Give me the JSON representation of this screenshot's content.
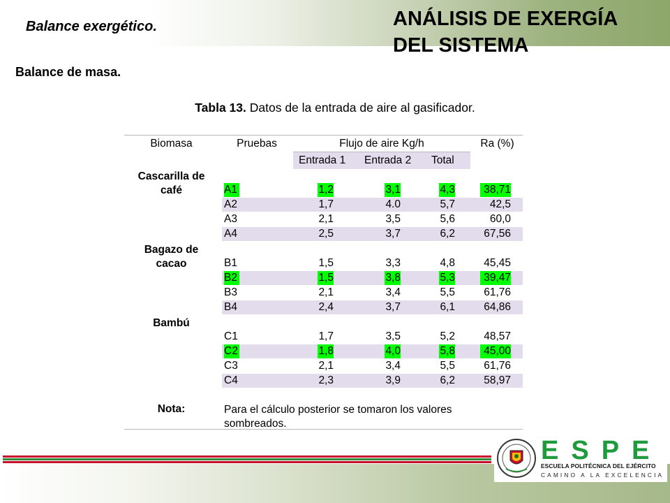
{
  "header": {
    "subtitle": "Balance exergético.",
    "title_line1": "ANÁLISIS DE EXERGÍA",
    "title_line2": "DEL SISTEMA"
  },
  "section_label": "Balance de masa.",
  "caption": {
    "label": "Tabla 13.",
    "text": " Datos de la entrada de aire al gasificador."
  },
  "table": {
    "headers": {
      "biomasa": "Biomasa",
      "pruebas": "Pruebas",
      "flujo": "Flujo de aire Kg/h",
      "ra": "Ra (%)",
      "entrada1": "Entrada 1",
      "entrada2": "Entrada 2",
      "total": "Total"
    },
    "groups": [
      {
        "name_line1": "Cascarilla de",
        "name_line2": "café"
      },
      {
        "name_line1": "Bagazo de",
        "name_line2": "cacao"
      },
      {
        "name_line1": "Bambú",
        "name_line2": ""
      }
    ],
    "rows": [
      {
        "prueba": "A1",
        "e1": "1,2",
        "e2": "3,1",
        "total": "4,3",
        "ra": "38,71",
        "highlighted": true
      },
      {
        "prueba": "A2",
        "e1": "1,7",
        "e2": "4.0",
        "total": "5,7",
        "ra": "42,5",
        "highlighted": false
      },
      {
        "prueba": "A3",
        "e1": "2,1",
        "e2": "3,5",
        "total": "5,6",
        "ra": "60,0",
        "highlighted": false
      },
      {
        "prueba": "A4",
        "e1": "2,5",
        "e2": "3,7",
        "total": "6,2",
        "ra": "67,56",
        "highlighted": false
      },
      {
        "prueba": "B1",
        "e1": "1,5",
        "e2": "3,3",
        "total": "4,8",
        "ra": "45,45",
        "highlighted": false
      },
      {
        "prueba": "B2",
        "e1": "1,5",
        "e2": "3,8",
        "total": "5,3",
        "ra": "39,47",
        "highlighted": true
      },
      {
        "prueba": "B3",
        "e1": "2,1",
        "e2": "3,4",
        "total": "5,5",
        "ra": "61,76",
        "highlighted": false
      },
      {
        "prueba": "B4",
        "e1": "2,4",
        "e2": "3,7",
        "total": "6,1",
        "ra": "64,86",
        "highlighted": false
      },
      {
        "prueba": "C1",
        "e1": "1,7",
        "e2": "3,5",
        "total": "5,2",
        "ra": "48,57",
        "highlighted": false
      },
      {
        "prueba": "C2",
        "e1": "1,8",
        "e2": "4,0",
        "total": "5,8",
        "ra": "45,00",
        "highlighted": true
      },
      {
        "prueba": "C3",
        "e1": "2,1",
        "e2": "3,4",
        "total": "5,5",
        "ra": "61,76",
        "highlighted": false
      },
      {
        "prueba": "C4",
        "e1": "2,3",
        "e2": "3,9",
        "total": "6,2",
        "ra": "58,97",
        "highlighted": false
      }
    ],
    "nota_label": "Nota:",
    "nota_line1": "Para el cálculo posterior se tomaron los valores",
    "nota_line2": "sombreados."
  },
  "colors": {
    "highlight": "#00ff00",
    "row_shade": "#e2dcec",
    "stripe_red": "#c8102e",
    "stripe_green": "#2e8b3a",
    "espe_green": "#1f9a3c"
  },
  "logo": {
    "brand": "ESPE",
    "line1": "ESCUELA POLITÉCNICA DEL EJÉRCITO",
    "line2": "CAMINO A LA EXCELENCIA"
  }
}
